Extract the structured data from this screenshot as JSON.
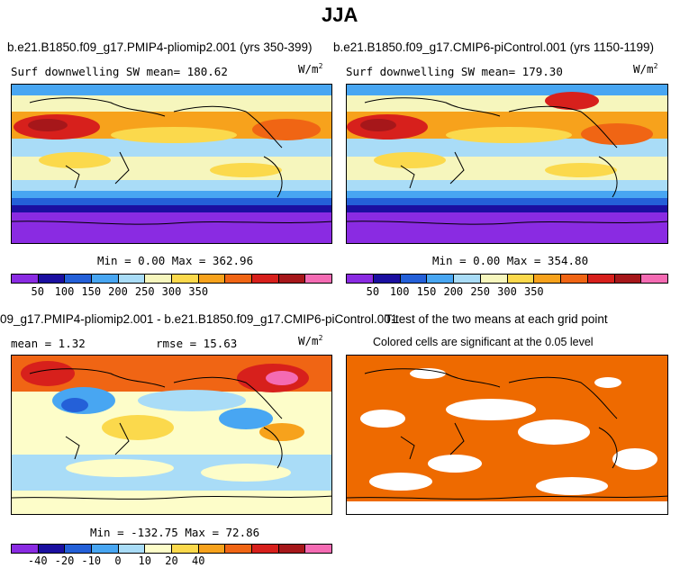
{
  "page_title": "JJA",
  "panels": {
    "top_left": {
      "case_title": "b.e21.B1850.f09_g17.PMIP4-pliomip2.001 (yrs 350-399)",
      "variable": "Surf downwelling SW",
      "mean_text": "mean= 180.62",
      "units": "W/m",
      "units_sup": "2",
      "minmax": "Min =    0.00 Max = 362.96",
      "colorbar_ticks": [
        "50",
        "100",
        "150",
        "200",
        "250",
        "300",
        "350"
      ]
    },
    "top_right": {
      "case_title": "b.e21.B1850.f09_g17.CMIP6-piControl.001 (yrs 1150-1199)",
      "variable": "Surf downwelling SW",
      "mean_text": "mean= 179.30",
      "units": "W/m",
      "units_sup": "2",
      "minmax": "Min =    0.00 Max = 354.80",
      "colorbar_ticks": [
        "50",
        "100",
        "150",
        "200",
        "250",
        "300",
        "350"
      ]
    },
    "bottom_left": {
      "case_title": "09_g17.PMIP4-pliomip2.001 - b.e21.B1850.f09_g17.CMIP6-piControl.001",
      "mean_text": "mean =    1.32",
      "rmse_text": "rmse =   15.63",
      "units": "W/m",
      "units_sup": "2",
      "minmax": "Min = -132.75 Max =  72.86",
      "colorbar_ticks": [
        "-40",
        "-20",
        "-10",
        "0",
        "10",
        "20",
        "40"
      ]
    },
    "bottom_right": {
      "case_title": "T-test of the two means at each grid point",
      "subtitle": "Colored cells are significant at the 0.05 level"
    }
  },
  "colors": {
    "abs_palette": [
      "#8a2be2",
      "#1b0fa0",
      "#2460d8",
      "#48a6f2",
      "#a9dcf7",
      "#f6f6bd",
      "#fbd94c",
      "#f7a21c",
      "#f06514",
      "#d7201c",
      "#a6171a",
      "#f46bb3"
    ],
    "diff_palette": [
      "#8a2be2",
      "#1b0fa0",
      "#2460d8",
      "#48a6f2",
      "#a9dcf7",
      "#fdfdc9",
      "#fbd94c",
      "#f7a21c",
      "#f06514",
      "#d7201c",
      "#a6171a",
      "#f46bb3"
    ],
    "ttest_fill": "#ee6a00"
  }
}
